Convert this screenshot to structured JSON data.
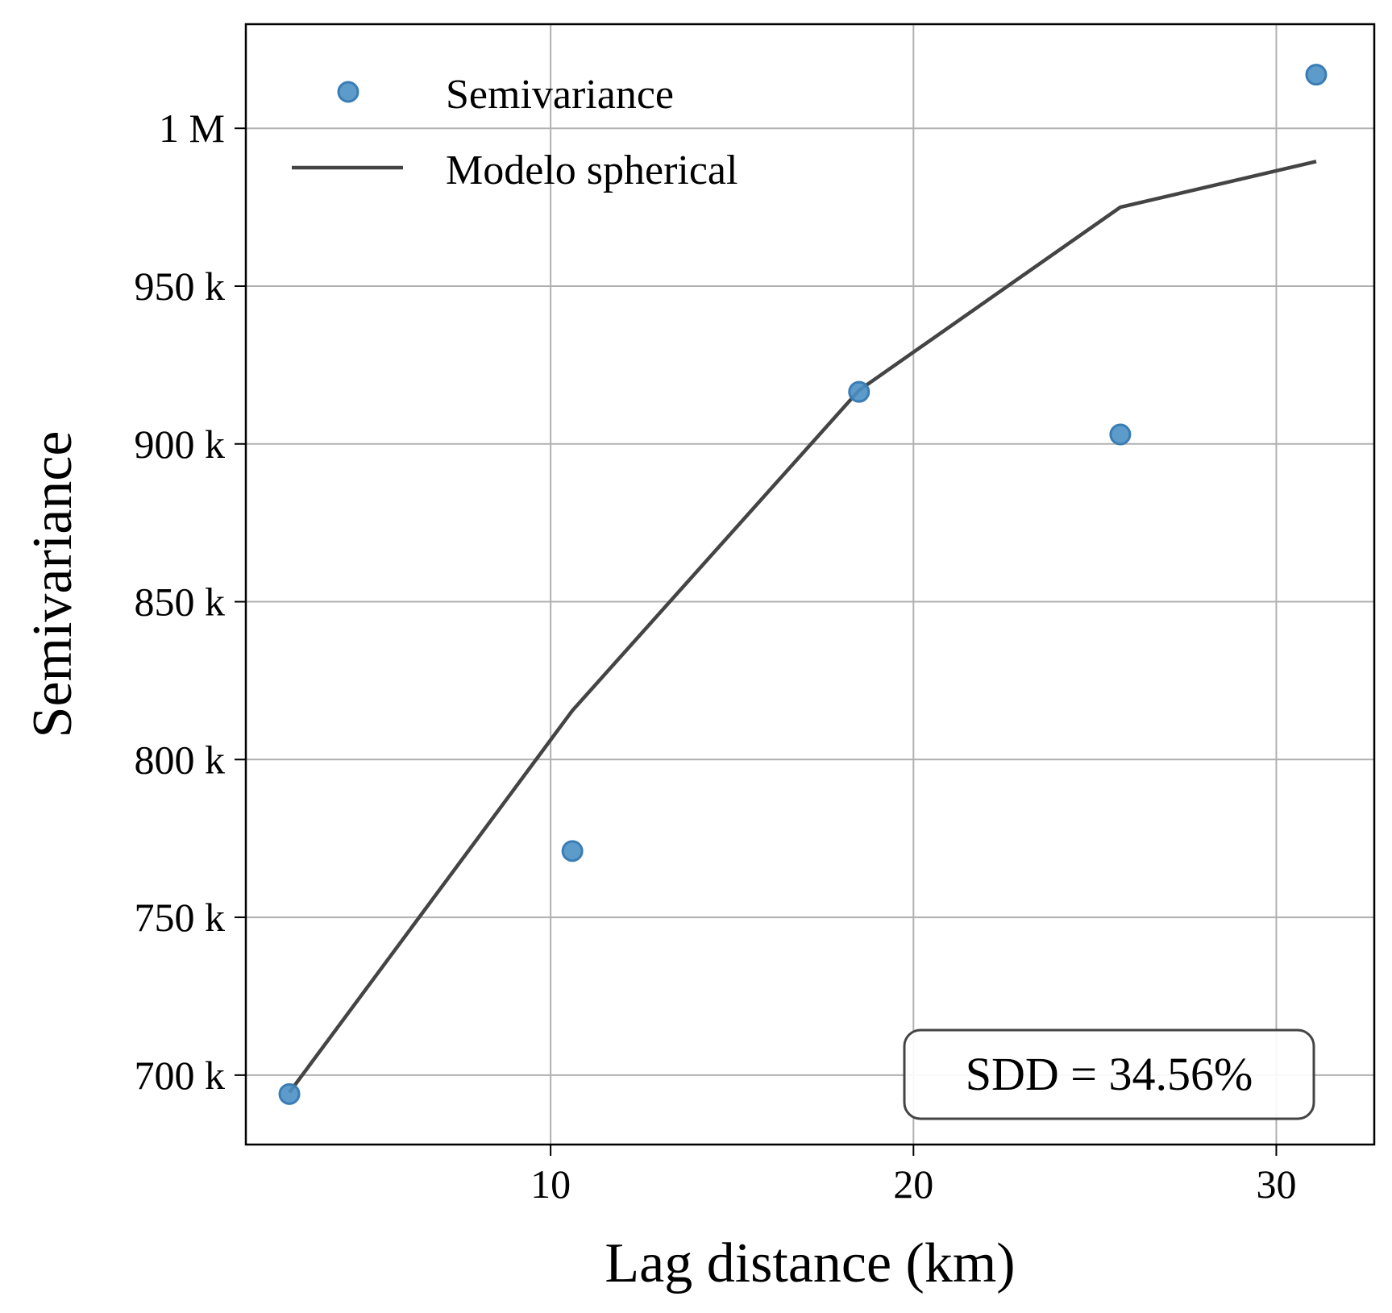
{
  "chart_data": {
    "type": "scatter",
    "xlabel": "Lag distance (km)",
    "ylabel": "Semivariance",
    "xlim": [
      1.6,
      32.7
    ],
    "ylim": [
      678000,
      1033000
    ],
    "x_ticks": [
      {
        "value": 10,
        "label": "10"
      },
      {
        "value": 20,
        "label": "20"
      },
      {
        "value": 30,
        "label": "30"
      }
    ],
    "y_ticks": [
      {
        "value": 700000,
        "label": "700 k"
      },
      {
        "value": 750000,
        "label": "750 k"
      },
      {
        "value": 800000,
        "label": "800 k"
      },
      {
        "value": 850000,
        "label": "850 k"
      },
      {
        "value": 900000,
        "label": "900 k"
      },
      {
        "value": 950000,
        "label": "950 k"
      },
      {
        "value": 1000000,
        "label": "1 M"
      }
    ],
    "grid": true,
    "legend_placement": "top-left",
    "series": [
      {
        "name": "Semivariance",
        "kind": "points",
        "color": "#4a90c4",
        "x": [
          2.8,
          10.6,
          18.5,
          25.7,
          31.1
        ],
        "y": [
          694000,
          771000,
          916500,
          903000,
          1017000
        ]
      },
      {
        "name": "Modelo spherical",
        "kind": "line",
        "color": "#444444",
        "x": [
          2.8,
          10.6,
          18.5,
          25.7,
          31.1
        ],
        "y": [
          694500,
          815500,
          917000,
          975000,
          989500
        ]
      }
    ],
    "annotation": {
      "text": "SDD = 34.56%",
      "placement": "bottom-right"
    }
  }
}
